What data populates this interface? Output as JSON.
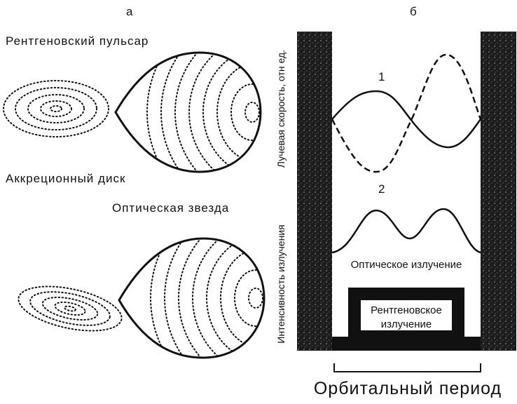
{
  "panel_a": {
    "label": "а",
    "pulsar": "Рентгеновский пульсар",
    "disk": "Аккреционный диск",
    "star": "Оптическая звезда"
  },
  "panel_b": {
    "label": "б",
    "y_axis_top": "Лучевая скорость, отн ед.",
    "y_axis_bottom": "Интенсивность излучения",
    "curve_1": "1",
    "curve_2": "2",
    "optical": "Оптическое излучение",
    "xray": [
      "Рентгеновское",
      "излучение"
    ],
    "period": "Орбитальный период"
  }
}
